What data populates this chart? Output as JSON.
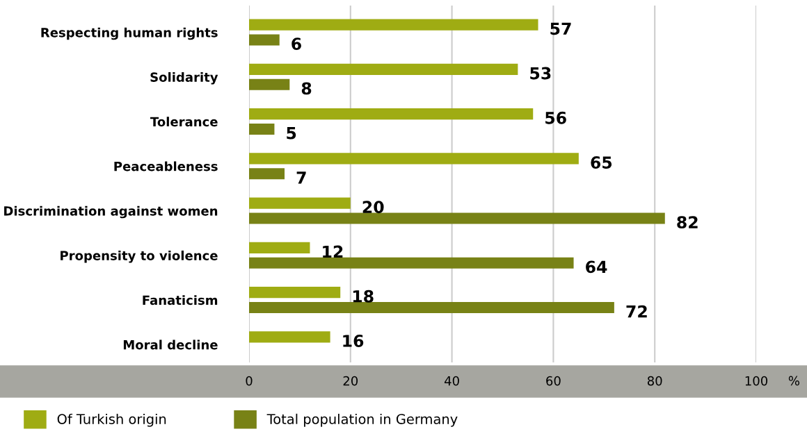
{
  "chart_data": {
    "type": "bar",
    "orientation": "horizontal",
    "categories": [
      "Respecting human rights",
      "Solidarity",
      "Tolerance",
      "Peaceableness",
      "Discrimination against women",
      "Propensity to violence",
      "Fanaticism",
      "Moral decline"
    ],
    "series": [
      {
        "name": "Of Turkish origin",
        "color": "#9fac13",
        "values": [
          57,
          53,
          56,
          65,
          20,
          12,
          18,
          16
        ]
      },
      {
        "name": "Total population in Germany",
        "color": "#788216",
        "values": [
          6,
          8,
          5,
          7,
          82,
          64,
          72,
          null
        ]
      }
    ],
    "xlim": [
      0,
      100
    ],
    "xticks": [
      0,
      20,
      40,
      60,
      80,
      100
    ],
    "xlabel": "%",
    "grid": "x",
    "data_labels": true,
    "legend": "bottom left"
  }
}
